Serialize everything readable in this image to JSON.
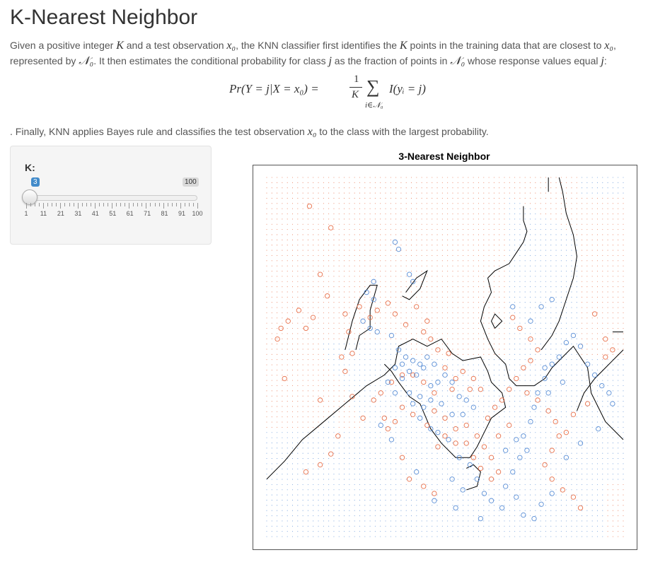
{
  "page": {
    "title": "K-Nearest Neighbor",
    "intro_1": "Given a positive integer ",
    "intro_K": "K",
    "intro_2": " and a test observation ",
    "intro_x0": "x₀",
    "intro_3": ", the KNN classifier first identifies the ",
    "intro_K2": "K",
    "intro_4": " points in the training data that are closest to ",
    "intro_x0b": "x₀",
    "intro_5": ",",
    "line2_1": "represented by ",
    "line2_N0": "𝒩₀",
    "line2_2": ". It then estimates the conditional probability for class ",
    "line2_j": "j",
    "line2_3": " as the fraction of points in ",
    "line2_N0b": "𝒩₀",
    "line2_4": " whose response values equal ",
    "line2_j2": "j",
    "line2_5": ":",
    "formula_lhs": "Pr(Y = j|X = x₀) =",
    "formula_frac_num": "1",
    "formula_frac_den": "K",
    "formula_sum": "∑",
    "formula_sum_sub": "i∈𝒩₀",
    "formula_rhs": "I(yᵢ = j)",
    "finally_1": ". Finally, KNN applies Bayes rule and classifies the test observation ",
    "finally_x0": "x₀",
    "finally_2": " to the class with the largest probability."
  },
  "control": {
    "label": "K:",
    "value": 3,
    "value_text": "3",
    "max_text": "100",
    "min": 1,
    "max": 100,
    "tick_labels": [
      "1",
      "11",
      "21",
      "31",
      "41",
      "51",
      "61",
      "71",
      "81",
      "91",
      "100"
    ]
  },
  "chart_data": {
    "type": "scatter",
    "title": "3-Nearest Neighbor",
    "xlim": [
      0,
      1
    ],
    "ylim": [
      0,
      1
    ],
    "grid_background": true,
    "colors": {
      "class_a": "#e8704a",
      "class_b": "#5b8fd6",
      "boundary": "#000000"
    },
    "series": [
      {
        "class": "class_a",
        "points": [
          [
            0.12,
            0.92
          ],
          [
            0.18,
            0.86
          ],
          [
            0.15,
            0.73
          ],
          [
            0.17,
            0.67
          ],
          [
            0.09,
            0.63
          ],
          [
            0.13,
            0.61
          ],
          [
            0.11,
            0.58
          ],
          [
            0.06,
            0.6
          ],
          [
            0.23,
            0.57
          ],
          [
            0.04,
            0.58
          ],
          [
            0.03,
            0.55
          ],
          [
            0.05,
            0.44
          ],
          [
            0.15,
            0.38
          ],
          [
            0.24,
            0.39
          ],
          [
            0.22,
            0.46
          ],
          [
            0.21,
            0.5
          ],
          [
            0.24,
            0.51
          ],
          [
            0.22,
            0.62
          ],
          [
            0.26,
            0.64
          ],
          [
            0.29,
            0.61
          ],
          [
            0.31,
            0.63
          ],
          [
            0.34,
            0.65
          ],
          [
            0.36,
            0.62
          ],
          [
            0.39,
            0.59
          ],
          [
            0.42,
            0.64
          ],
          [
            0.45,
            0.6
          ],
          [
            0.44,
            0.57
          ],
          [
            0.46,
            0.55
          ],
          [
            0.48,
            0.52
          ],
          [
            0.51,
            0.51
          ],
          [
            0.5,
            0.47
          ],
          [
            0.53,
            0.44
          ],
          [
            0.55,
            0.46
          ],
          [
            0.58,
            0.44
          ],
          [
            0.6,
            0.41
          ],
          [
            0.57,
            0.41
          ],
          [
            0.52,
            0.41
          ],
          [
            0.47,
            0.4
          ],
          [
            0.44,
            0.43
          ],
          [
            0.41,
            0.45
          ],
          [
            0.38,
            0.45
          ],
          [
            0.35,
            0.43
          ],
          [
            0.32,
            0.4
          ],
          [
            0.3,
            0.38
          ],
          [
            0.33,
            0.33
          ],
          [
            0.36,
            0.32
          ],
          [
            0.34,
            0.3
          ],
          [
            0.38,
            0.36
          ],
          [
            0.41,
            0.34
          ],
          [
            0.45,
            0.31
          ],
          [
            0.47,
            0.35
          ],
          [
            0.5,
            0.33
          ],
          [
            0.53,
            0.3
          ],
          [
            0.56,
            0.31
          ],
          [
            0.59,
            0.28
          ],
          [
            0.61,
            0.25
          ],
          [
            0.63,
            0.22
          ],
          [
            0.65,
            0.18
          ],
          [
            0.63,
            0.16
          ],
          [
            0.6,
            0.19
          ],
          [
            0.58,
            0.22
          ],
          [
            0.56,
            0.26
          ],
          [
            0.53,
            0.26
          ],
          [
            0.5,
            0.28
          ],
          [
            0.48,
            0.25
          ],
          [
            0.62,
            0.33
          ],
          [
            0.64,
            0.36
          ],
          [
            0.66,
            0.38
          ],
          [
            0.68,
            0.41
          ],
          [
            0.7,
            0.44
          ],
          [
            0.72,
            0.47
          ],
          [
            0.74,
            0.49
          ],
          [
            0.76,
            0.52
          ],
          [
            0.74,
            0.55
          ],
          [
            0.71,
            0.58
          ],
          [
            0.69,
            0.61
          ],
          [
            0.73,
            0.4
          ],
          [
            0.76,
            0.38
          ],
          [
            0.79,
            0.35
          ],
          [
            0.81,
            0.32
          ],
          [
            0.82,
            0.28
          ],
          [
            0.8,
            0.24
          ],
          [
            0.78,
            0.2
          ],
          [
            0.8,
            0.16
          ],
          [
            0.83,
            0.13
          ],
          [
            0.86,
            0.11
          ],
          [
            0.88,
            0.08
          ],
          [
            0.92,
            0.62
          ],
          [
            0.95,
            0.55
          ],
          [
            0.97,
            0.52
          ],
          [
            0.95,
            0.5
          ],
          [
            0.9,
            0.37
          ],
          [
            0.86,
            0.34
          ],
          [
            0.84,
            0.29
          ],
          [
            0.27,
            0.33
          ],
          [
            0.2,
            0.28
          ],
          [
            0.18,
            0.23
          ],
          [
            0.15,
            0.2
          ],
          [
            0.11,
            0.18
          ],
          [
            0.4,
            0.16
          ],
          [
            0.44,
            0.14
          ],
          [
            0.38,
            0.22
          ],
          [
            0.47,
            0.12
          ],
          [
            0.65,
            0.28
          ],
          [
            0.68,
            0.31
          ]
        ]
      },
      {
        "class": "class_b",
        "points": [
          [
            0.36,
            0.82
          ],
          [
            0.37,
            0.8
          ],
          [
            0.4,
            0.73
          ],
          [
            0.41,
            0.71
          ],
          [
            0.3,
            0.71
          ],
          [
            0.28,
            0.68
          ],
          [
            0.3,
            0.66
          ],
          [
            0.27,
            0.6
          ],
          [
            0.29,
            0.58
          ],
          [
            0.31,
            0.57
          ],
          [
            0.35,
            0.56
          ],
          [
            0.37,
            0.52
          ],
          [
            0.39,
            0.5
          ],
          [
            0.41,
            0.49
          ],
          [
            0.43,
            0.48
          ],
          [
            0.45,
            0.5
          ],
          [
            0.47,
            0.48
          ],
          [
            0.44,
            0.47
          ],
          [
            0.42,
            0.45
          ],
          [
            0.4,
            0.46
          ],
          [
            0.38,
            0.44
          ],
          [
            0.38,
            0.48
          ],
          [
            0.36,
            0.47
          ],
          [
            0.34,
            0.43
          ],
          [
            0.36,
            0.4
          ],
          [
            0.4,
            0.4
          ],
          [
            0.43,
            0.39
          ],
          [
            0.46,
            0.42
          ],
          [
            0.48,
            0.43
          ],
          [
            0.5,
            0.45
          ],
          [
            0.52,
            0.43
          ],
          [
            0.54,
            0.39
          ],
          [
            0.56,
            0.38
          ],
          [
            0.58,
            0.36
          ],
          [
            0.55,
            0.34
          ],
          [
            0.52,
            0.34
          ],
          [
            0.49,
            0.37
          ],
          [
            0.46,
            0.38
          ],
          [
            0.44,
            0.36
          ],
          [
            0.41,
            0.37
          ],
          [
            0.43,
            0.33
          ],
          [
            0.46,
            0.3
          ],
          [
            0.48,
            0.29
          ],
          [
            0.51,
            0.27
          ],
          [
            0.54,
            0.22
          ],
          [
            0.57,
            0.2
          ],
          [
            0.59,
            0.16
          ],
          [
            0.61,
            0.12
          ],
          [
            0.63,
            0.1
          ],
          [
            0.66,
            0.08
          ],
          [
            0.67,
            0.14
          ],
          [
            0.69,
            0.18
          ],
          [
            0.71,
            0.22
          ],
          [
            0.73,
            0.24
          ],
          [
            0.7,
            0.27
          ],
          [
            0.67,
            0.24
          ],
          [
            0.72,
            0.28
          ],
          [
            0.74,
            0.32
          ],
          [
            0.75,
            0.36
          ],
          [
            0.76,
            0.4
          ],
          [
            0.78,
            0.44
          ],
          [
            0.8,
            0.48
          ],
          [
            0.82,
            0.5
          ],
          [
            0.84,
            0.54
          ],
          [
            0.86,
            0.56
          ],
          [
            0.88,
            0.53
          ],
          [
            0.9,
            0.48
          ],
          [
            0.92,
            0.45
          ],
          [
            0.94,
            0.42
          ],
          [
            0.96,
            0.4
          ],
          [
            0.97,
            0.37
          ],
          [
            0.93,
            0.3
          ],
          [
            0.88,
            0.26
          ],
          [
            0.84,
            0.22
          ],
          [
            0.8,
            0.12
          ],
          [
            0.77,
            0.09
          ],
          [
            0.75,
            0.05
          ],
          [
            0.72,
            0.06
          ],
          [
            0.7,
            0.11
          ],
          [
            0.6,
            0.05
          ],
          [
            0.53,
            0.08
          ],
          [
            0.47,
            0.1
          ],
          [
            0.42,
            0.18
          ],
          [
            0.35,
            0.27
          ],
          [
            0.32,
            0.31
          ],
          [
            0.52,
            0.16
          ],
          [
            0.55,
            0.13
          ],
          [
            0.74,
            0.6
          ],
          [
            0.77,
            0.64
          ],
          [
            0.8,
            0.66
          ],
          [
            0.78,
            0.47
          ],
          [
            0.83,
            0.43
          ],
          [
            0.79,
            0.4
          ],
          [
            0.69,
            0.64
          ]
        ]
      }
    ]
  }
}
